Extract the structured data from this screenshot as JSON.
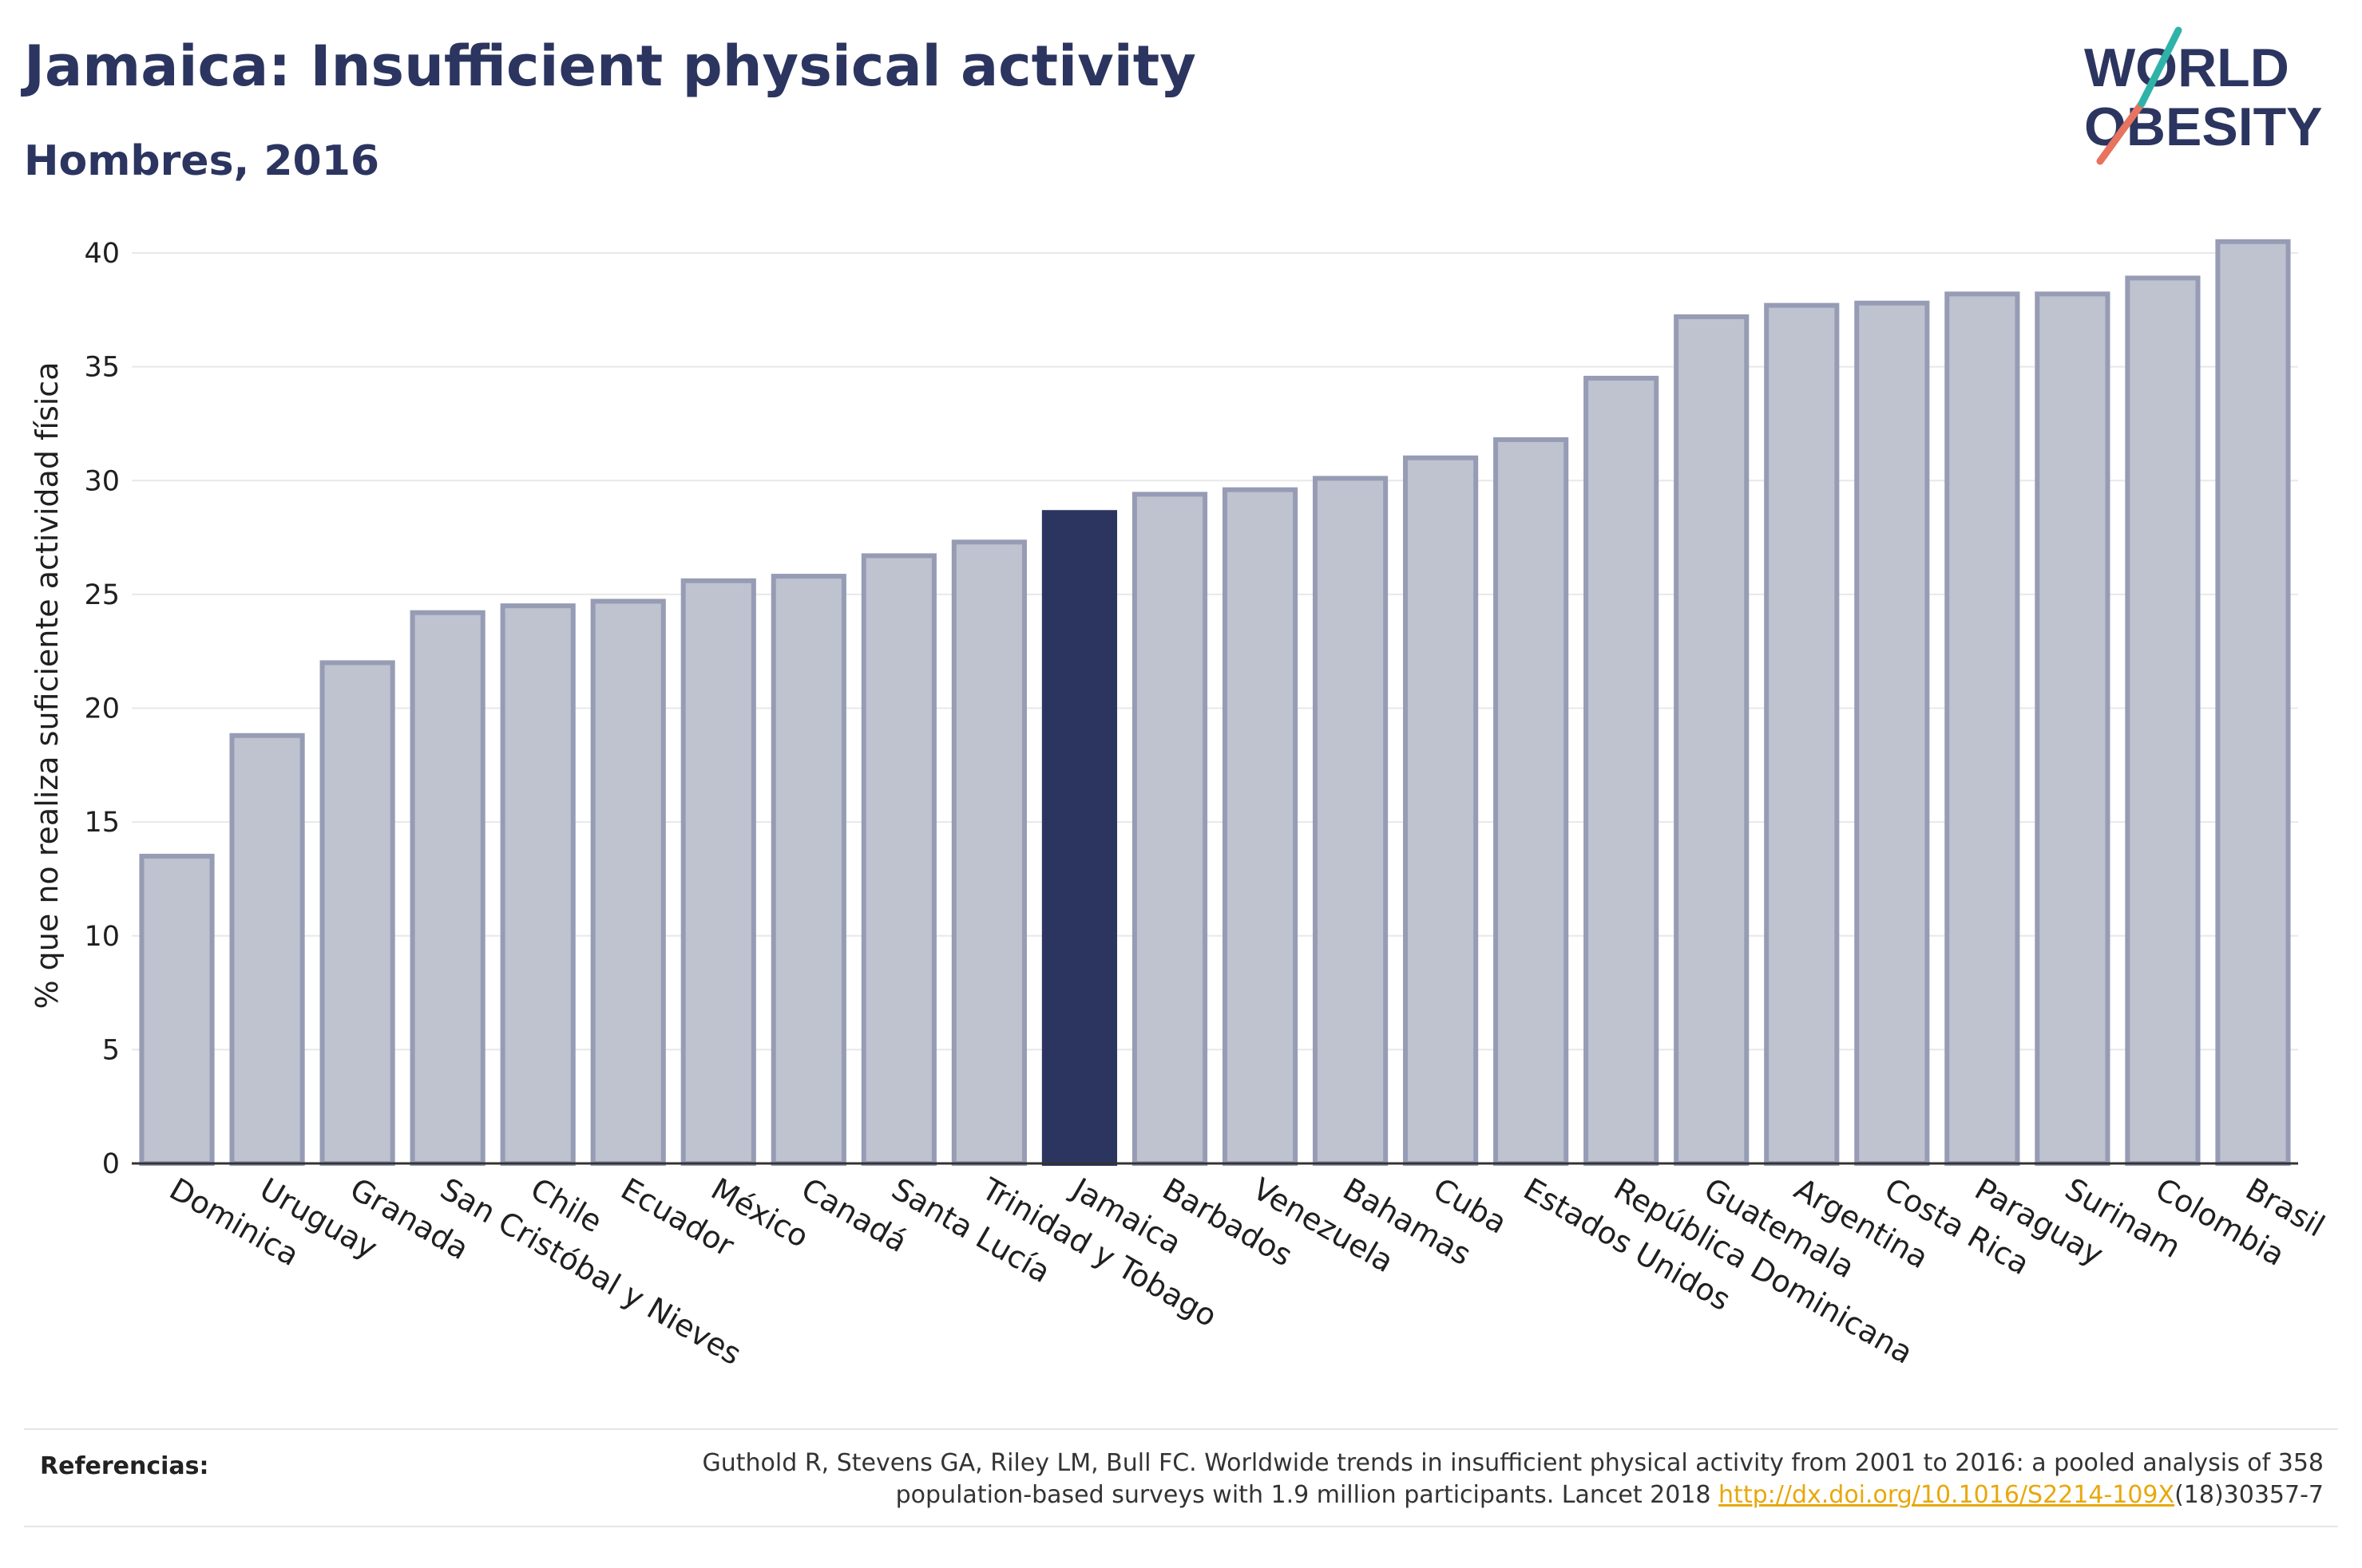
{
  "header": {
    "title": "Jamaica: Insufficient physical activity",
    "subtitle": "Hombres, 2016"
  },
  "logo": {
    "line1": "WORLD",
    "line2": "OBESITY"
  },
  "colors": {
    "bar": "#bfc2cf",
    "bar_stroke": "#979cb5",
    "highlight": "#2b3560",
    "grid": "#e8e8e8"
  },
  "chart_data": {
    "type": "bar",
    "title": "Jamaica: Insufficient physical activity",
    "subtitle": "Hombres, 2016",
    "xlabel": "",
    "ylabel": "% que no realiza suficiente actividad física",
    "ylim": [
      0,
      42
    ],
    "yticks": [
      0,
      5,
      10,
      15,
      20,
      25,
      30,
      35,
      40
    ],
    "grid": true,
    "highlight": "Jamaica",
    "categories": [
      "Dominica",
      "Uruguay",
      "Granada",
      "San Cristóbal y Nieves",
      "Chile",
      "Ecuador",
      "México",
      "Canadá",
      "Santa Lucía",
      "Trinidad y Tobago",
      "Jamaica",
      "Barbados",
      "Venezuela",
      "Bahamas",
      "Cuba",
      "Estados Unidos",
      "República Dominicana",
      "Guatemala",
      "Argentina",
      "Costa Rica",
      "Paraguay",
      "Surinam",
      "Colombia",
      "Brasil"
    ],
    "values": [
      13.5,
      18.8,
      22.0,
      24.2,
      24.5,
      24.7,
      25.6,
      25.8,
      26.7,
      27.3,
      28.6,
      29.4,
      29.6,
      30.1,
      31.0,
      31.8,
      34.5,
      37.2,
      37.7,
      37.8,
      38.2,
      38.2,
      38.9,
      40.5
    ]
  },
  "footer": {
    "ref_label": "Referencias:",
    "ref_text_1": "Guthold R, Stevens GA, Riley LM, Bull FC. Worldwide trends in insufficient physical activity from 2001 to 2016: a pooled analysis of 358",
    "ref_text_2": "population-based surveys with 1.9 million participants. Lancet 2018 ",
    "ref_link": "http://dx.doi.org/10.1016/S2214-109X",
    "ref_text_3": "(18)30357-7"
  }
}
